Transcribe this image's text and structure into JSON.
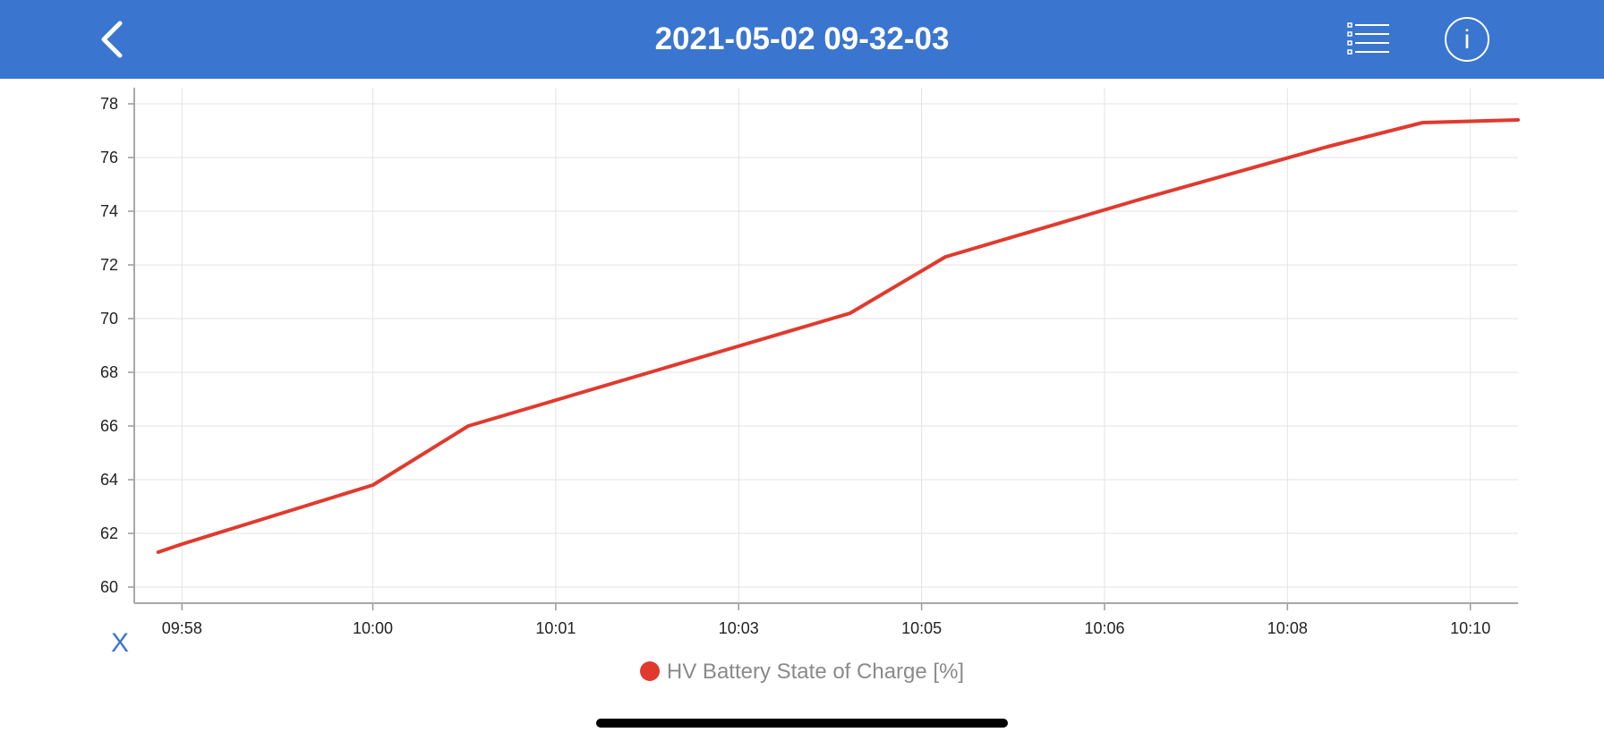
{
  "header": {
    "title": "2021-05-02 09-32-03",
    "back_icon": "chevron-left-icon",
    "list_icon": "list-icon",
    "info_icon": "info-icon",
    "background": "#3a75cf"
  },
  "chart_controls": {
    "x_label": "X"
  },
  "legend": {
    "label": "HV Battery State of Charge [%]",
    "color": "#e03a2e"
  },
  "chart_data": {
    "type": "line",
    "title": "",
    "xlabel": "",
    "ylabel": "",
    "x_tick_labels": [
      "09:58",
      "10:00",
      "10:01",
      "10:03",
      "10:05",
      "10:06",
      "10:08",
      "10:10"
    ],
    "y_ticks": [
      60,
      62,
      64,
      66,
      68,
      70,
      72,
      74,
      76,
      78
    ],
    "ylim": [
      59.4,
      78.6
    ],
    "grid": true,
    "legend_position": "bottom",
    "series": [
      {
        "name": "HV Battery State of Charge [%]",
        "color": "#e03a2e",
        "x": [
          "09:57:45",
          "09:58:00",
          "10:00:00",
          "10:01:00",
          "10:03:00",
          "10:05:00",
          "10:06:00",
          "10:08:00",
          "10:10:00",
          "10:11:00",
          "10:12:00"
        ],
        "y": [
          61.3,
          61.6,
          63.8,
          66.0,
          68.1,
          70.2,
          72.3,
          74.4,
          76.4,
          77.3,
          77.4
        ]
      }
    ]
  }
}
